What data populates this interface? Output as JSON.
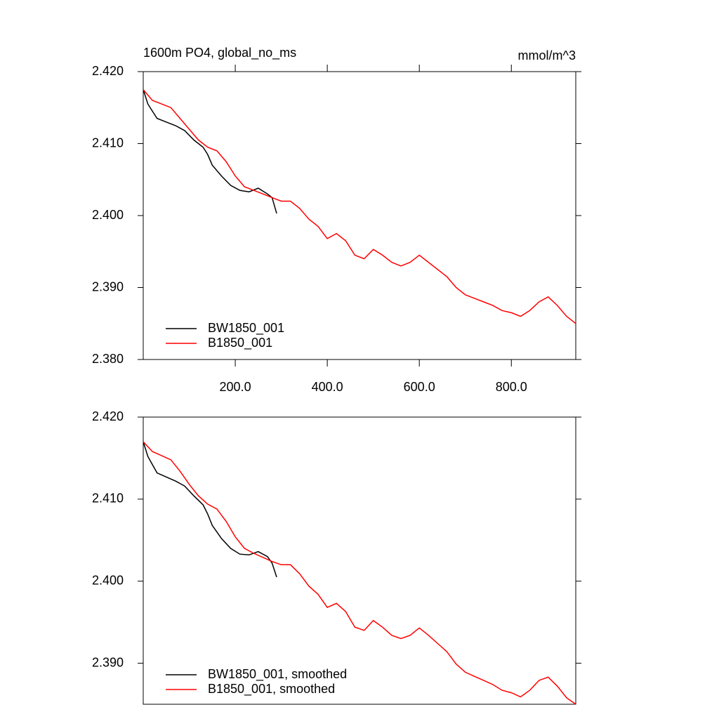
{
  "chart_data": [
    {
      "type": "line",
      "title": "1600m PO4, global_no_ms",
      "units": "mmol/m^3",
      "xlim": [
        0,
        940
      ],
      "ylim": [
        2.38,
        2.42
      ],
      "xticks": [
        {
          "value": 200,
          "label": "200.0"
        },
        {
          "value": 400,
          "label": "400.0"
        },
        {
          "value": 600,
          "label": "600.0"
        },
        {
          "value": 800,
          "label": "800.0"
        }
      ],
      "yticks": [
        {
          "value": 2.38,
          "label": "2.380"
        },
        {
          "value": 2.39,
          "label": "2.390"
        },
        {
          "value": 2.4,
          "label": "2.400"
        },
        {
          "value": 2.41,
          "label": "2.410"
        },
        {
          "value": 2.42,
          "label": "2.420"
        }
      ],
      "series": [
        {
          "name": "BW1850_001",
          "color": "#000000",
          "x": [
            0,
            10,
            20,
            30,
            50,
            70,
            90,
            110,
            130,
            140,
            150,
            170,
            190,
            210,
            230,
            250,
            270,
            280,
            290
          ],
          "values": [
            2.4175,
            2.4155,
            2.4145,
            2.4135,
            2.413,
            2.4125,
            2.4118,
            2.4105,
            2.4095,
            2.4085,
            2.407,
            2.4055,
            2.4042,
            2.4035,
            2.4033,
            2.4038,
            2.403,
            2.4025,
            2.4003
          ]
        },
        {
          "name": "B1850_001",
          "color": "#ff0000",
          "x": [
            0,
            20,
            40,
            60,
            80,
            100,
            120,
            140,
            160,
            180,
            200,
            220,
            240,
            260,
            280,
            300,
            320,
            340,
            360,
            380,
            400,
            420,
            440,
            460,
            480,
            500,
            520,
            540,
            560,
            580,
            600,
            620,
            640,
            660,
            680,
            700,
            720,
            740,
            760,
            780,
            800,
            820,
            840,
            860,
            880,
            900,
            920,
            940
          ],
          "values": [
            2.4175,
            2.416,
            2.4155,
            2.415,
            2.4135,
            2.412,
            2.4105,
            2.4095,
            2.409,
            2.4075,
            2.4055,
            2.404,
            2.4035,
            2.403,
            2.4025,
            2.402,
            2.402,
            2.401,
            2.3995,
            2.3985,
            2.3968,
            2.3975,
            2.3965,
            2.3945,
            2.394,
            2.3953,
            2.3945,
            2.3935,
            2.393,
            2.3935,
            2.3945,
            2.3935,
            2.3925,
            2.3915,
            2.39,
            2.389,
            2.3885,
            2.388,
            2.3875,
            2.3868,
            2.3865,
            2.386,
            2.3868,
            2.388,
            2.3887,
            2.3875,
            2.386,
            2.385
          ]
        }
      ]
    },
    {
      "type": "line",
      "xlim": [
        0,
        940
      ],
      "ylim": [
        2.385,
        2.42
      ],
      "yticks": [
        {
          "value": 2.39,
          "label": "2.390"
        },
        {
          "value": 2.4,
          "label": "2.400"
        },
        {
          "value": 2.41,
          "label": "2.410"
        },
        {
          "value": 2.42,
          "label": "2.420"
        }
      ],
      "series": [
        {
          "name": "BW1850_001, smoothed",
          "color": "#000000",
          "x": [
            0,
            10,
            20,
            30,
            50,
            70,
            90,
            110,
            130,
            140,
            150,
            170,
            190,
            210,
            230,
            250,
            270,
            280,
            290
          ],
          "values": [
            2.417,
            2.4152,
            2.4142,
            2.4132,
            2.4127,
            2.4122,
            2.4116,
            2.4104,
            2.4093,
            2.4082,
            2.4068,
            2.4052,
            2.404,
            2.4033,
            2.4032,
            2.4036,
            2.403,
            2.4022,
            2.4005
          ]
        },
        {
          "name": "B1850_001, smoothed",
          "color": "#ff0000",
          "x": [
            0,
            20,
            40,
            60,
            80,
            100,
            120,
            140,
            160,
            180,
            200,
            220,
            240,
            260,
            280,
            300,
            320,
            340,
            360,
            380,
            400,
            420,
            440,
            460,
            480,
            500,
            520,
            540,
            560,
            580,
            600,
            620,
            640,
            660,
            680,
            700,
            720,
            740,
            760,
            780,
            800,
            820,
            840,
            860,
            880,
            900,
            920,
            940
          ],
          "values": [
            2.417,
            2.4158,
            2.4153,
            2.4148,
            2.4134,
            2.4118,
            2.4104,
            2.4094,
            2.4088,
            2.4073,
            2.4054,
            2.404,
            2.4034,
            2.4029,
            2.4024,
            2.402,
            2.402,
            2.4009,
            2.3994,
            2.3984,
            2.3968,
            2.3973,
            2.3963,
            2.3944,
            2.394,
            2.3952,
            2.3944,
            2.3934,
            2.393,
            2.3934,
            2.3943,
            2.3934,
            2.3924,
            2.3914,
            2.3899,
            2.3889,
            2.3884,
            2.3879,
            2.3874,
            2.3867,
            2.3864,
            2.3859,
            2.3867,
            2.3879,
            2.3883,
            2.3872,
            2.3858,
            2.385
          ]
        }
      ]
    }
  ]
}
